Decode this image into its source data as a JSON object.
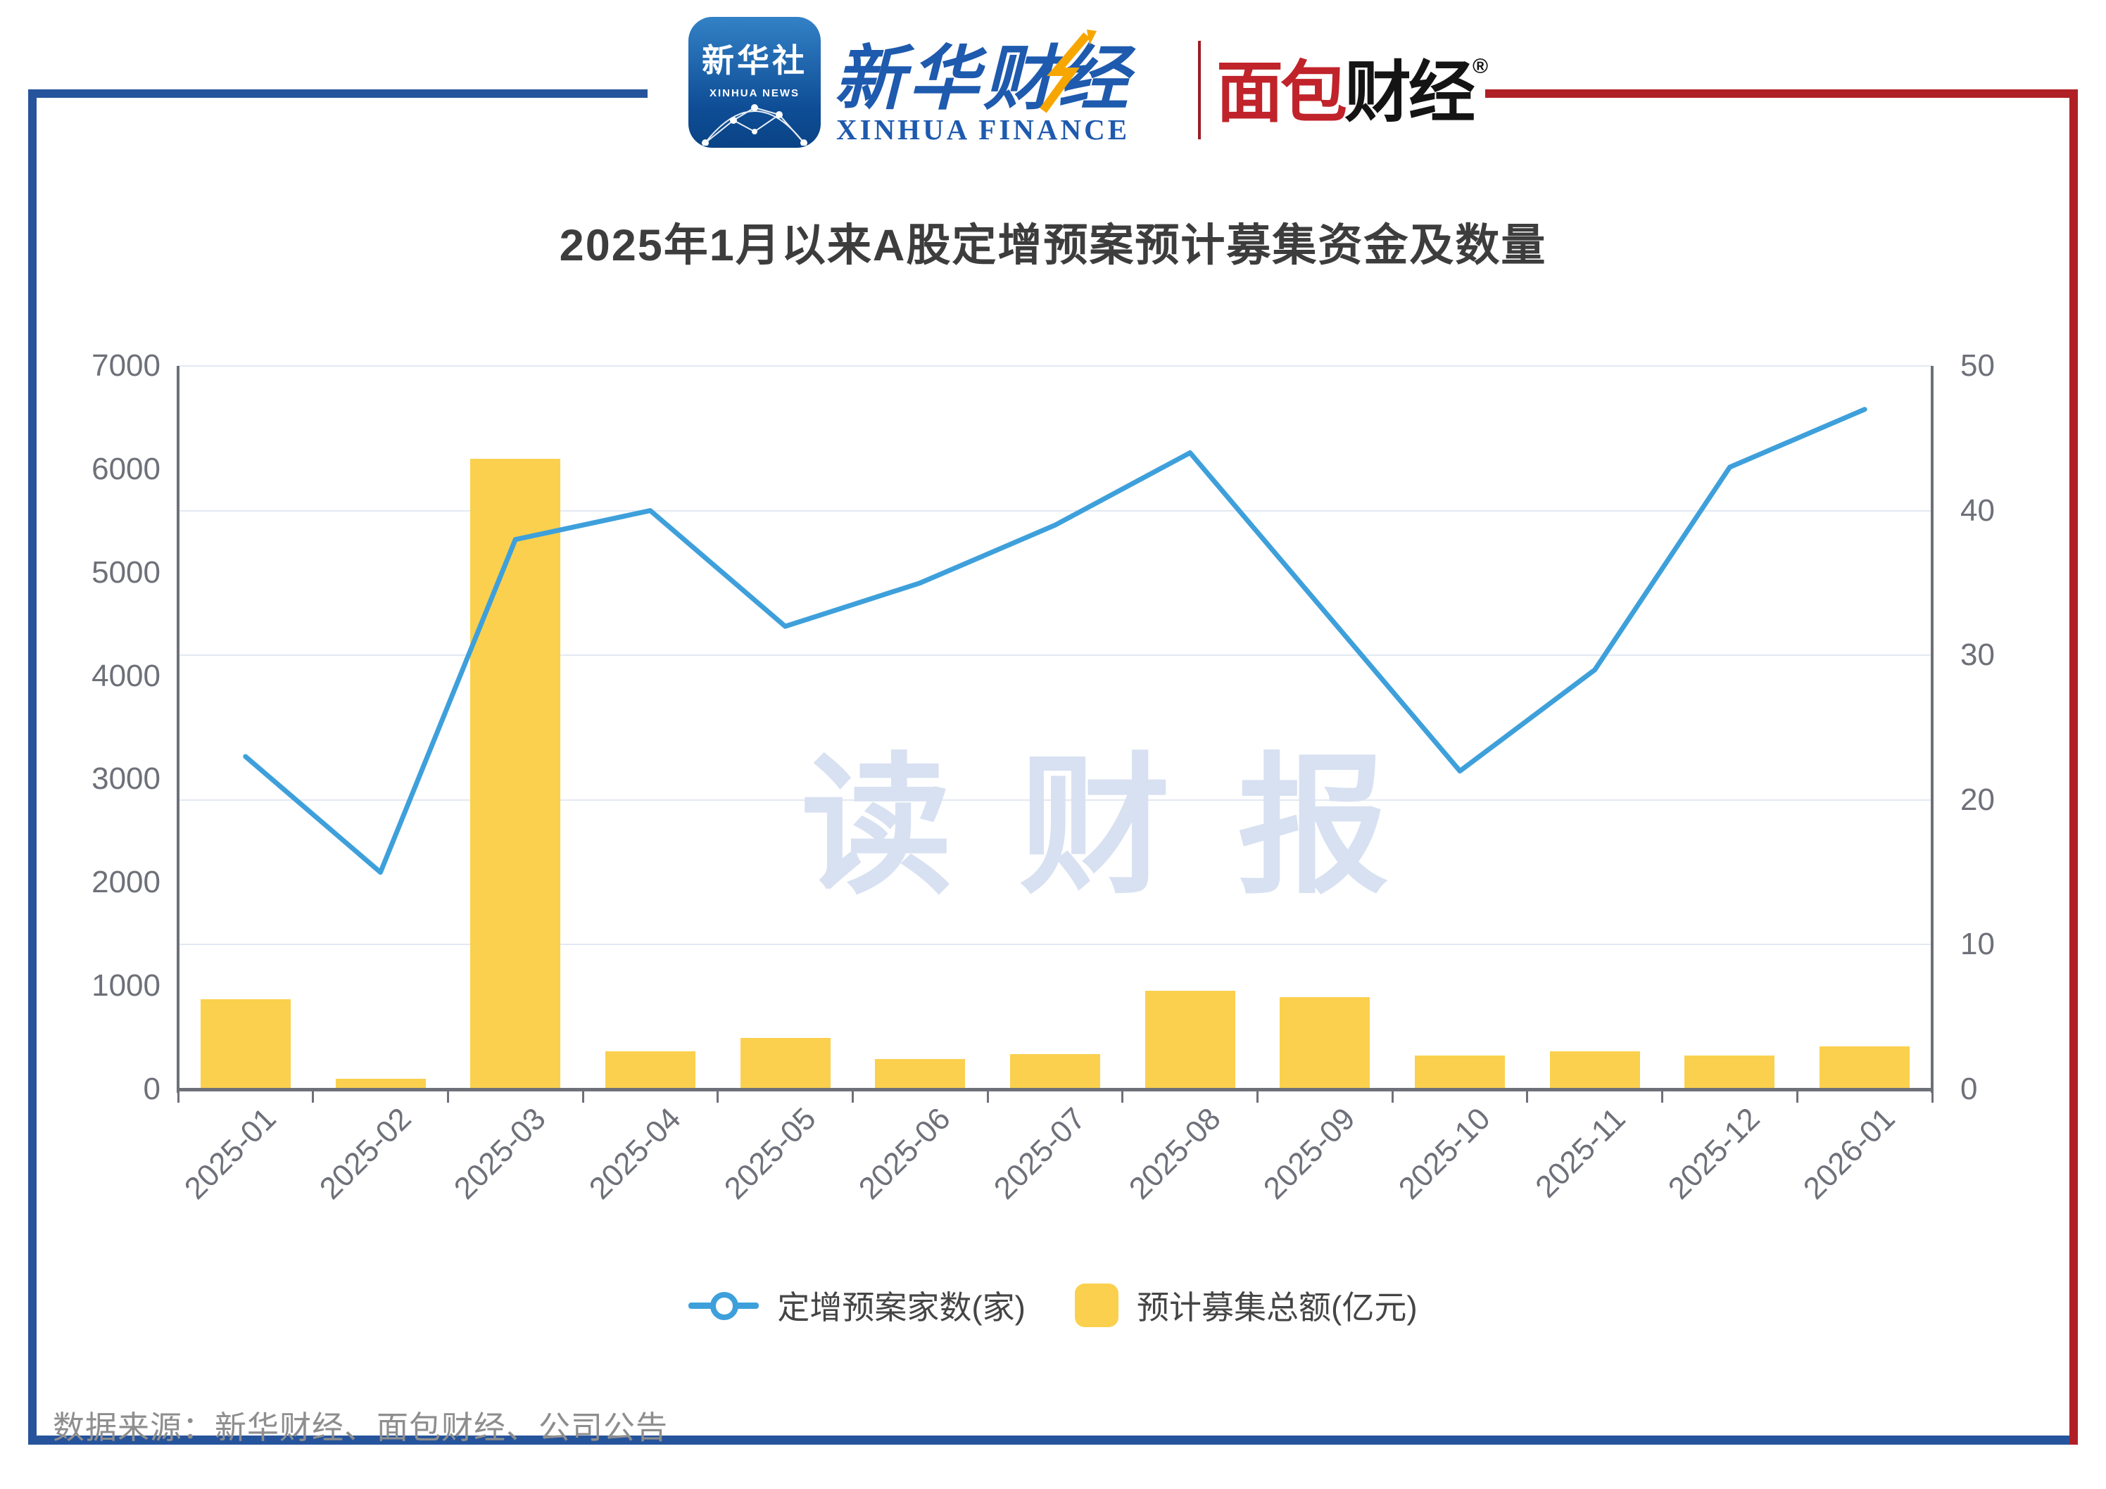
{
  "header": {
    "xinhua_icon": {
      "cn": "新华社",
      "en": "XINHUA NEWS"
    },
    "xinhua_finance": {
      "cn": "新华财经",
      "en": "XINHUA FINANCE"
    },
    "mianbao": {
      "part_red": "面包",
      "part_black": "财经",
      "reg_mark": "®"
    }
  },
  "watermark": "读财报",
  "footer": {
    "source_text": "数据来源：新华财经、面包财经、公司公告"
  },
  "colors": {
    "bar": "#fbd04e",
    "line": "#3ea0db",
    "grid": "#e3e9f3",
    "axis": "#6e7079",
    "frame_blue": "#26549c",
    "frame_red": "#b01f26",
    "watermark": "#d8e1f1"
  },
  "chart_data": {
    "type": "bar+line",
    "title": "2025年1月以来A股定增预案预计募集资金及数量",
    "categories": [
      "2025-01",
      "2025-02",
      "2025-03",
      "2025-04",
      "2025-05",
      "2025-06",
      "2025-07",
      "2025-08",
      "2025-09",
      "2025-10",
      "2025-11",
      "2025-12",
      "2026-01"
    ],
    "series": [
      {
        "name": "定增预案家数(家)",
        "type": "line",
        "axis": "right",
        "color": "#3ea0db",
        "values": [
          23,
          15,
          38,
          40,
          32,
          35,
          39,
          44,
          33,
          22,
          29,
          43,
          47
        ]
      },
      {
        "name": "预计募集总额(亿元)",
        "type": "bar",
        "axis": "left",
        "color": "#fbd04e",
        "values": [
          870,
          100,
          6100,
          370,
          500,
          290,
          340,
          950,
          890,
          330,
          370,
          330,
          415
        ]
      }
    ],
    "y_left": {
      "min": 0,
      "max": 7000,
      "step": 1000,
      "tick_labels": [
        "0",
        "1000",
        "2000",
        "3000",
        "4000",
        "5000",
        "6000",
        "7000"
      ]
    },
    "y_right": {
      "min": 0,
      "max": 50,
      "step": 10,
      "tick_labels": [
        "0",
        "10",
        "20",
        "30",
        "40",
        "50"
      ]
    },
    "grid": true,
    "legend_position": "bottom"
  }
}
